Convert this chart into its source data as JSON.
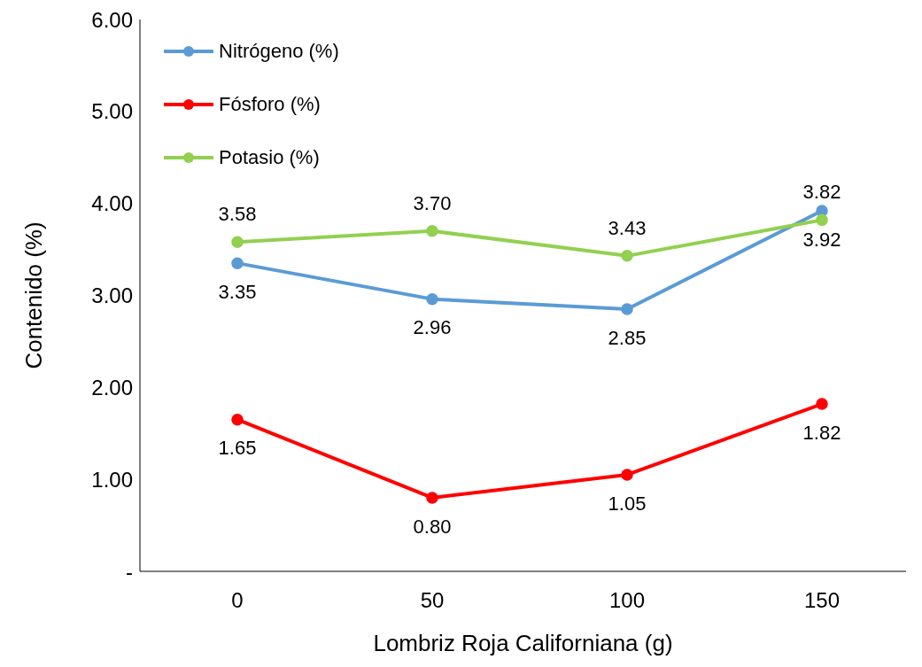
{
  "chart_data": {
    "type": "line",
    "xlabel": "Lombriz Roja Californiana (g)",
    "ylabel": "Contenido (%)",
    "categories": [
      "0",
      "50",
      "100",
      "150"
    ],
    "series": [
      {
        "name": "Nitrógeno (%)",
        "color": "#5b9bd5",
        "values": [
          3.35,
          2.96,
          2.85,
          3.92
        ],
        "value_labels": [
          "3.35",
          "2.96",
          "2.85",
          "3.92"
        ]
      },
      {
        "name": "Fósforo (%)",
        "color": "#ff0000",
        "values": [
          1.65,
          0.8,
          1.05,
          1.82
        ],
        "value_labels": [
          "1.65",
          "0.80",
          "1.05",
          "1.82"
        ]
      },
      {
        "name": "Potasio (%)",
        "color": "#92d050",
        "values": [
          3.58,
          3.7,
          3.43,
          3.82
        ],
        "value_labels": [
          "3.58",
          "3.70",
          "3.43",
          "3.82"
        ]
      }
    ],
    "ylim": [
      0,
      6
    ],
    "yticks": [
      {
        "value": 0,
        "label": "-"
      },
      {
        "value": 1,
        "label": "1.00"
      },
      {
        "value": 2,
        "label": "2.00"
      },
      {
        "value": 3,
        "label": "3.00"
      },
      {
        "value": 4,
        "label": "4.00"
      },
      {
        "value": 5,
        "label": "5.00"
      },
      {
        "value": 6,
        "label": "6.00"
      }
    ],
    "grid": false,
    "legend": "top left",
    "marker": "circle",
    "line_style": "solid"
  }
}
